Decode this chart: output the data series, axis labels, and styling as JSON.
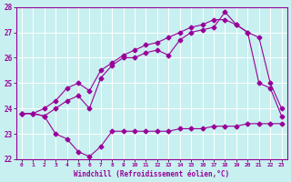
{
  "xlabel": "Windchill (Refroidissement éolien,°C)",
  "bg_color": "#c8f0f0",
  "line_color": "#990099",
  "grid_color": "#ffffff",
  "xlim": [
    -0.5,
    23.5
  ],
  "ylim": [
    22,
    28
  ],
  "yticks": [
    22,
    23,
    24,
    25,
    26,
    27,
    28
  ],
  "xticks": [
    0,
    1,
    2,
    3,
    4,
    5,
    6,
    7,
    8,
    9,
    10,
    11,
    12,
    13,
    14,
    15,
    16,
    17,
    18,
    19,
    20,
    21,
    22,
    23
  ],
  "series1_x": [
    0,
    1,
    2,
    3,
    4,
    5,
    6,
    7,
    8,
    9,
    10,
    11,
    12,
    13,
    14,
    15,
    16,
    17,
    18,
    19,
    20,
    21,
    22,
    23
  ],
  "series1_y": [
    23.8,
    23.8,
    23.7,
    23.0,
    22.8,
    22.3,
    22.1,
    22.5,
    23.1,
    23.1,
    23.1,
    23.1,
    23.1,
    23.1,
    23.2,
    23.2,
    23.2,
    23.3,
    23.3,
    23.3,
    23.4,
    23.4,
    23.4,
    23.4
  ],
  "series2_x": [
    0,
    1,
    2,
    3,
    4,
    5,
    6,
    7,
    8,
    9,
    10,
    11,
    12,
    13,
    14,
    15,
    16,
    17,
    18,
    19,
    20,
    21,
    22,
    23
  ],
  "series2_y": [
    23.8,
    23.8,
    23.7,
    24.0,
    24.3,
    24.5,
    24.0,
    25.2,
    25.7,
    26.0,
    26.0,
    26.2,
    26.3,
    26.1,
    26.7,
    27.0,
    27.1,
    27.2,
    27.8,
    27.3,
    27.0,
    25.0,
    24.8,
    23.7
  ],
  "series3_x": [
    0,
    1,
    2,
    3,
    4,
    5,
    6,
    7,
    8,
    9,
    10,
    11,
    12,
    13,
    14,
    15,
    16,
    17,
    18,
    19,
    20,
    21,
    22,
    23
  ],
  "series3_y": [
    23.8,
    23.8,
    24.0,
    24.3,
    24.8,
    25.0,
    24.7,
    25.5,
    25.8,
    26.1,
    26.3,
    26.5,
    26.6,
    26.8,
    27.0,
    27.2,
    27.3,
    27.5,
    27.5,
    27.3,
    27.0,
    26.8,
    25.0,
    24.0
  ]
}
